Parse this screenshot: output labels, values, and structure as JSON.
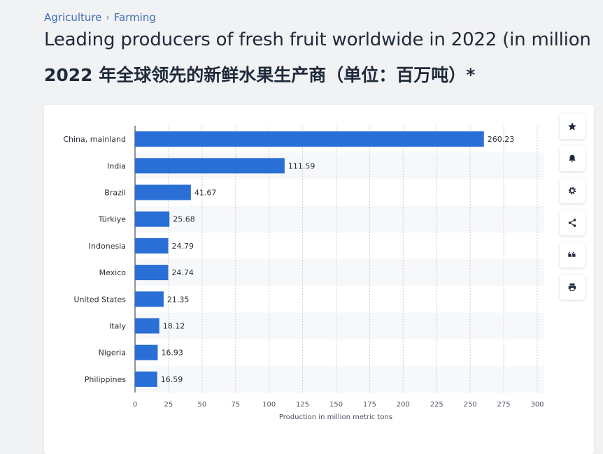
{
  "breadcrumb": {
    "items": [
      "Agriculture",
      "Farming"
    ],
    "separator": "›"
  },
  "title": "Leading producers of fresh fruit worldwide in 2022 (in million",
  "subtitle": "2022 年全球领先的新鲜水果生产商（单位：百万吨）*",
  "toolbar": {
    "icons": [
      "star-icon",
      "bell-icon",
      "gear-icon",
      "share-icon",
      "quote-icon",
      "print-icon"
    ]
  },
  "colors": {
    "bar": "#2a6fd6",
    "accent": "#3e6db5"
  },
  "chart_data": {
    "type": "bar",
    "orientation": "horizontal",
    "categories": [
      "China, mainland",
      "India",
      "Brazil",
      "Türkiye",
      "Indonesia",
      "Mexico",
      "United States",
      "Italy",
      "Nigeria",
      "Philippines"
    ],
    "values": [
      260.23,
      111.59,
      41.67,
      25.68,
      24.79,
      24.74,
      21.35,
      18.12,
      16.93,
      16.59
    ],
    "data_labels": [
      "260.23",
      "111.59",
      "41.67",
      "25.68",
      "24.79",
      "24.74",
      "21.35",
      "18.12",
      "16.93",
      "16.59"
    ],
    "xlabel": "Production in million metric tons",
    "xlim": [
      0,
      300
    ],
    "xticks": [
      0,
      25,
      50,
      75,
      100,
      125,
      150,
      175,
      200,
      225,
      250,
      275,
      300
    ],
    "grid": "vertical-dashed",
    "legend": "none"
  }
}
